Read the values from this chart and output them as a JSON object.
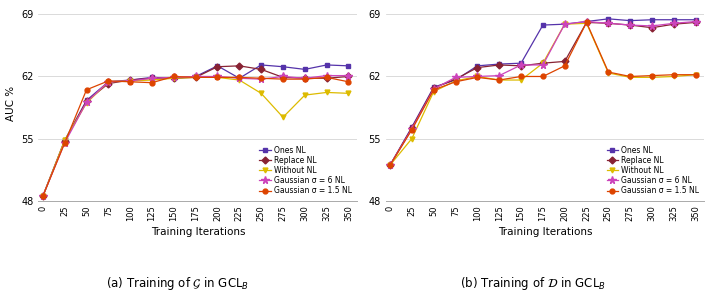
{
  "x": [
    0,
    25,
    50,
    75,
    100,
    125,
    150,
    175,
    200,
    225,
    250,
    275,
    300,
    325,
    350
  ],
  "plot_a": {
    "ones_nl": [
      48.5,
      54.8,
      59.3,
      61.4,
      61.6,
      61.9,
      61.8,
      62.0,
      63.2,
      61.8,
      63.3,
      63.1,
      62.8,
      63.3,
      63.2
    ],
    "replace_nl": [
      48.5,
      54.7,
      59.2,
      61.2,
      61.6,
      61.8,
      61.8,
      61.9,
      63.1,
      63.2,
      62.8,
      61.9,
      61.8,
      61.8,
      62.0
    ],
    "without_nl": [
      48.5,
      54.8,
      59.0,
      61.4,
      61.5,
      61.6,
      61.8,
      61.9,
      61.9,
      61.6,
      60.1,
      57.4,
      59.9,
      60.2,
      60.1
    ],
    "gaussian6_nl": [
      48.5,
      54.5,
      59.1,
      61.4,
      61.5,
      61.8,
      61.9,
      62.0,
      62.0,
      61.8,
      61.7,
      62.0,
      61.8,
      62.1,
      62.1
    ],
    "gaussian15_nl": [
      48.5,
      54.5,
      60.5,
      61.5,
      61.4,
      61.3,
      62.0,
      61.9,
      61.9,
      61.9,
      61.8,
      61.7,
      61.7,
      61.9,
      61.4
    ]
  },
  "plot_b": {
    "ones_nl": [
      52.0,
      56.3,
      60.8,
      61.6,
      63.2,
      63.4,
      63.5,
      67.8,
      67.9,
      68.2,
      68.5,
      68.3,
      68.4,
      68.4,
      68.4
    ],
    "replace_nl": [
      52.0,
      56.2,
      60.7,
      61.7,
      63.0,
      63.3,
      63.2,
      63.5,
      63.7,
      68.1,
      68.0,
      67.8,
      67.5,
      67.9,
      68.1
    ],
    "without_nl": [
      52.0,
      55.0,
      60.3,
      61.5,
      62.0,
      61.6,
      61.6,
      63.5,
      67.9,
      68.0,
      62.4,
      61.9,
      61.9,
      62.0,
      62.2
    ],
    "gaussian6_nl": [
      52.0,
      56.1,
      60.6,
      61.9,
      62.0,
      62.1,
      63.3,
      63.3,
      67.9,
      68.2,
      68.0,
      67.8,
      67.7,
      68.0,
      68.2
    ],
    "gaussian15_nl": [
      52.0,
      56.0,
      60.5,
      61.4,
      61.9,
      61.6,
      62.0,
      62.0,
      63.2,
      68.1,
      62.5,
      62.0,
      62.1,
      62.2,
      62.2
    ]
  },
  "colors": {
    "ones_nl": "#5533aa",
    "replace_nl": "#882233",
    "without_nl": "#ddbb00",
    "gaussian6_nl": "#cc44bb",
    "gaussian15_nl": "#dd4400"
  },
  "markers": {
    "ones_nl": "s",
    "replace_nl": "D",
    "without_nl": "v",
    "gaussian6_nl": "*",
    "gaussian15_nl": "o"
  },
  "labels": {
    "ones_nl": "Ones NL",
    "replace_nl": "Replace NL",
    "without_nl": "Without NL",
    "gaussian6_nl": "Gaussian σ = 6 NL",
    "gaussian15_nl": "Gaussian σ = 1.5 NL"
  },
  "ylabel": "AUC %",
  "xlabel": "Training Iterations",
  "ylim": [
    48,
    70
  ],
  "yticks": [
    48,
    55,
    62,
    69
  ],
  "xticks": [
    0,
    25,
    50,
    75,
    100,
    125,
    150,
    175,
    200,
    225,
    250,
    275,
    300,
    325,
    350
  ],
  "title_a": "(a) Training of $\\mathcal{G}$ in GCL$_B$",
  "title_b": "(b) Training of $\\mathcal{D}$ in GCL$_B$"
}
